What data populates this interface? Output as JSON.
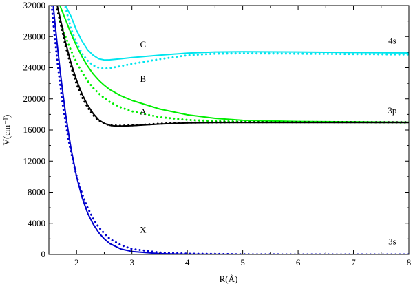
{
  "chart_data": {
    "type": "line",
    "xlabel": "R(Å)",
    "ylabel": "V(cm⁻¹)",
    "xlim": [
      1.5,
      8
    ],
    "ylim": [
      0,
      32000
    ],
    "xticks": [
      2,
      3,
      4,
      5,
      6,
      7,
      8
    ],
    "yticks": [
      0,
      4000,
      8000,
      12000,
      16000,
      20000,
      24000,
      28000,
      32000
    ],
    "grid": false,
    "legend": "none",
    "annotations": [
      {
        "text": "C",
        "x": 3.2,
        "y": 26600
      },
      {
        "text": "B",
        "x": 3.2,
        "y": 22200
      },
      {
        "text": "A",
        "x": 3.2,
        "y": 18000
      },
      {
        "text": "X",
        "x": 3.2,
        "y": 2800
      },
      {
        "text": "4s",
        "x": 7.7,
        "y": 27100
      },
      {
        "text": "3p",
        "x": 7.7,
        "y": 18100
      },
      {
        "text": "3s",
        "x": 7.7,
        "y": 1300
      }
    ],
    "series": [
      {
        "color": "#00e5ee",
        "style": "solid",
        "points": [
          [
            1.8,
            32000
          ],
          [
            1.9,
            30600
          ],
          [
            2.0,
            28800
          ],
          [
            2.1,
            27400
          ],
          [
            2.2,
            26300
          ],
          [
            2.3,
            25600
          ],
          [
            2.4,
            25150
          ],
          [
            2.5,
            25000
          ],
          [
            2.6,
            25020
          ],
          [
            2.8,
            25150
          ],
          [
            3.0,
            25300
          ],
          [
            3.5,
            25620
          ],
          [
            4.0,
            25870
          ],
          [
            4.5,
            26020
          ],
          [
            5.0,
            26060
          ],
          [
            6.0,
            26020
          ],
          [
            7.0,
            25950
          ],
          [
            8.0,
            25900
          ]
        ]
      },
      {
        "color": "#00e5ee",
        "style": "dotted",
        "points": [
          [
            1.8,
            31800
          ],
          [
            1.9,
            29000
          ],
          [
            2.0,
            27200
          ],
          [
            2.1,
            25800
          ],
          [
            2.2,
            24900
          ],
          [
            2.3,
            24300
          ],
          [
            2.4,
            24000
          ],
          [
            2.5,
            23900
          ],
          [
            2.6,
            23950
          ],
          [
            2.8,
            24200
          ],
          [
            3.0,
            24500
          ],
          [
            3.5,
            25100
          ],
          [
            4.0,
            25600
          ],
          [
            4.5,
            25800
          ],
          [
            5.0,
            25850
          ],
          [
            6.0,
            25800
          ],
          [
            7.0,
            25750
          ],
          [
            8.0,
            25700
          ]
        ]
      },
      {
        "color": "#00ee00",
        "style": "solid",
        "points": [
          [
            1.7,
            32000
          ],
          [
            1.8,
            30200
          ],
          [
            1.9,
            28400
          ],
          [
            2.0,
            26800
          ],
          [
            2.1,
            25400
          ],
          [
            2.2,
            24200
          ],
          [
            2.3,
            23200
          ],
          [
            2.4,
            22400
          ],
          [
            2.5,
            21750
          ],
          [
            2.6,
            21200
          ],
          [
            2.8,
            20400
          ],
          [
            3.0,
            19800
          ],
          [
            3.5,
            18700
          ],
          [
            4.0,
            17950
          ],
          [
            4.5,
            17500
          ],
          [
            5.0,
            17250
          ],
          [
            6.0,
            17100
          ],
          [
            7.0,
            17050
          ],
          [
            8.0,
            17000
          ]
        ]
      },
      {
        "color": "#00ee00",
        "style": "dotted",
        "points": [
          [
            1.7,
            30000
          ],
          [
            1.8,
            28000
          ],
          [
            1.9,
            26200
          ],
          [
            2.0,
            24700
          ],
          [
            2.1,
            23400
          ],
          [
            2.2,
            22300
          ],
          [
            2.3,
            21400
          ],
          [
            2.4,
            20700
          ],
          [
            2.5,
            20100
          ],
          [
            2.6,
            19600
          ],
          [
            2.8,
            18900
          ],
          [
            3.0,
            18400
          ],
          [
            3.5,
            17650
          ],
          [
            4.0,
            17300
          ],
          [
            4.5,
            17150
          ],
          [
            5.0,
            17100
          ],
          [
            6.0,
            17050
          ],
          [
            7.0,
            17000
          ],
          [
            8.0,
            16950
          ]
        ]
      },
      {
        "color": "#000000",
        "style": "solid",
        "points": [
          [
            1.65,
            32000
          ],
          [
            1.7,
            30500
          ],
          [
            1.8,
            27300
          ],
          [
            1.9,
            24600
          ],
          [
            2.0,
            22400
          ],
          [
            2.1,
            20600
          ],
          [
            2.2,
            19200
          ],
          [
            2.3,
            18100
          ],
          [
            2.4,
            17300
          ],
          [
            2.5,
            16850
          ],
          [
            2.6,
            16600
          ],
          [
            2.7,
            16500
          ],
          [
            2.8,
            16500
          ],
          [
            3.0,
            16560
          ],
          [
            3.5,
            16760
          ],
          [
            4.0,
            16900
          ],
          [
            4.5,
            16950
          ],
          [
            5.0,
            16950
          ],
          [
            6.0,
            16950
          ],
          [
            7.0,
            16950
          ],
          [
            8.0,
            16950
          ]
        ]
      },
      {
        "color": "#000000",
        "style": "dotted",
        "points": [
          [
            1.65,
            31500
          ],
          [
            1.7,
            30000
          ],
          [
            1.8,
            26800
          ],
          [
            1.9,
            24100
          ],
          [
            2.0,
            21900
          ],
          [
            2.1,
            20200
          ],
          [
            2.2,
            18900
          ],
          [
            2.3,
            17900
          ],
          [
            2.4,
            17200
          ],
          [
            2.5,
            16800
          ],
          [
            2.6,
            16600
          ],
          [
            2.8,
            16550
          ],
          [
            3.0,
            16600
          ],
          [
            3.5,
            16800
          ],
          [
            4.0,
            16950
          ],
          [
            5.0,
            17000
          ],
          [
            6.0,
            17000
          ],
          [
            7.0,
            17000
          ],
          [
            8.0,
            17000
          ]
        ]
      },
      {
        "color": "#0000cc",
        "style": "solid",
        "points": [
          [
            1.58,
            32000
          ],
          [
            1.6,
            30500
          ],
          [
            1.65,
            27000
          ],
          [
            1.7,
            23800
          ],
          [
            1.75,
            20900
          ],
          [
            1.8,
            18200
          ],
          [
            1.85,
            15800
          ],
          [
            1.9,
            13600
          ],
          [
            2.0,
            10000
          ],
          [
            2.1,
            7300
          ],
          [
            2.2,
            5300
          ],
          [
            2.3,
            3900
          ],
          [
            2.4,
            2800
          ],
          [
            2.5,
            2000
          ],
          [
            2.6,
            1400
          ],
          [
            2.8,
            700
          ],
          [
            3.0,
            380
          ],
          [
            3.5,
            100
          ],
          [
            4.0,
            30
          ],
          [
            5.0,
            0
          ],
          [
            6.0,
            0
          ],
          [
            7.0,
            0
          ],
          [
            8.0,
            0
          ]
        ]
      },
      {
        "color": "#0000cc",
        "style": "dotted",
        "points": [
          [
            1.55,
            32000
          ],
          [
            1.6,
            28400
          ],
          [
            1.65,
            25000
          ],
          [
            1.7,
            22000
          ],
          [
            1.75,
            19300
          ],
          [
            1.8,
            17000
          ],
          [
            1.85,
            14900
          ],
          [
            1.9,
            13100
          ],
          [
            2.0,
            10100
          ],
          [
            2.1,
            7800
          ],
          [
            2.2,
            6000
          ],
          [
            2.3,
            4600
          ],
          [
            2.4,
            3500
          ],
          [
            2.5,
            2700
          ],
          [
            2.6,
            2000
          ],
          [
            2.8,
            1200
          ],
          [
            3.0,
            700
          ],
          [
            3.5,
            250
          ],
          [
            4.0,
            100
          ],
          [
            5.0,
            20
          ],
          [
            6.0,
            0
          ],
          [
            7.0,
            0
          ],
          [
            8.0,
            0
          ]
        ]
      }
    ]
  }
}
